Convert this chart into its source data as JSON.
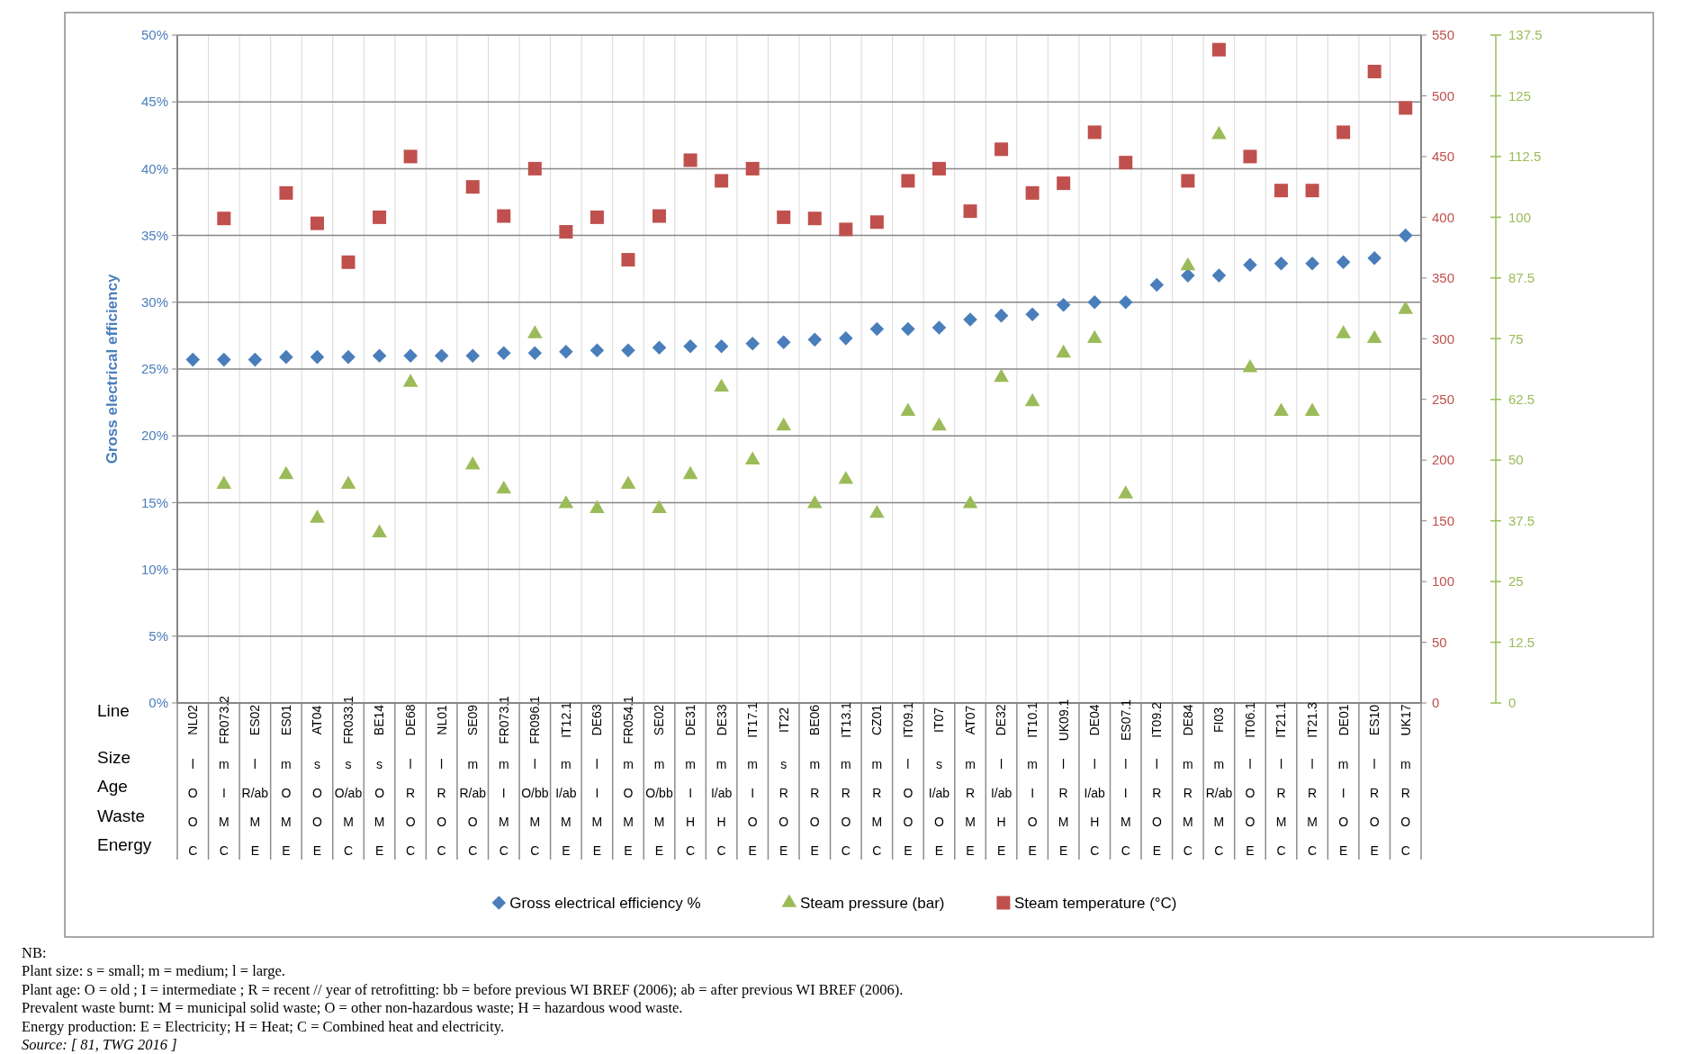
{
  "chart_data": {
    "type": "scatter",
    "ylabel": "Gross electrical efficiency",
    "xlabel": "Line\nSize\nAge\nWaste\nEnergy",
    "categories": [
      "NL02\nl\nO\nO\nC",
      "FR073.2\nm\nI\nM\nC",
      "ES02\nl\nR/ab\nM\nE",
      "ES01\nm\nO\nM\nE",
      "AT04\ns\nO\nO\nE",
      "FR033.1\ns\nO/ab\nM\nC",
      "BE14\ns\nO\nM\nE",
      "DE68\nl\nR\nO\nC",
      "NL01\nl\nR\nO\nC",
      "SE09\nm\nR/ab\nO\nC",
      "FR073.1\nm\nI\nM\nC",
      "FR096.1\nl\nO/bb\nM\nC",
      "IT12.1\nm\nI/ab\nM\nE",
      "DE63\nl\nI\nM\nE",
      "FR054.1\nm\nO\nM\nE",
      "SE02\nm\nO/bb\nM\nE",
      "DE31\nm\nI\nH\nC",
      "DE33\nm\nI/ab\nH\nC",
      "IT17.1\nm\nI\nO\nE",
      "IT22\ns\nR\nO\nE",
      "BE06\nm\nR\nO\nE",
      "IT13.1\nm\nR\nO\nC",
      "CZ01\nm\nR\nM\nC",
      "IT09.1\nl\nO\nO\nE",
      "IT07\ns\nI/ab\nO\nE",
      "AT07\nm\nR\nM\nE",
      "DE32\nl\nI/ab\nH\nE",
      "IT10.1\nm\nI\nO\nE",
      "UK09.1\nl\nR\nM\nE",
      "DE04\nl\nI/ab\nH\nC",
      "ES07.1\nl\nI\nM\nC",
      "IT09.2\nl\nR\nO\nE",
      "DE84\nm\nR\nM\nC",
      "FI03\nm\nR/ab\nM\nC",
      "IT06.1\nl\nO\nO\nE",
      "IT21.1\nl\nR\nM\nC",
      "IT21.3\nl\nR\nM\nC",
      "DE01\nm\nI\nO\nE",
      "ES10\nl\nR\nO\nE",
      "UK17\nm\nR\nO\nC"
    ],
    "series": [
      {
        "name": "Gross electrical efficiency %",
        "color": "#4a7ebb",
        "marker": "diamond",
        "values": [
          25.7,
          25.7,
          25.7,
          25.9,
          25.9,
          25.9,
          26.0,
          26.0,
          26.0,
          26.0,
          26.2,
          26.2,
          26.3,
          26.4,
          26.4,
          26.6,
          26.7,
          26.7,
          26.9,
          27.0,
          27.2,
          27.3,
          28.0,
          28.0,
          28.1,
          28.7,
          29.0,
          29.1,
          29.8,
          30.0,
          30.0,
          31.3,
          32.0,
          32.0,
          32.8,
          32.9,
          32.9,
          33.0,
          33.3,
          35.0
        ]
      },
      {
        "name": "Steam pressure (bar)",
        "color": "#9bbb59",
        "marker": "triangle",
        "axis": "y3",
        "values": [
          null,
          45,
          null,
          47,
          38,
          45,
          35,
          66,
          null,
          49,
          44,
          76,
          41,
          40,
          45,
          40,
          47,
          65,
          50,
          57,
          41,
          46,
          39,
          60,
          57,
          41,
          67,
          62,
          72,
          75,
          43,
          null,
          90,
          117,
          69,
          60,
          60,
          76,
          75,
          81
        ]
      },
      {
        "name": "Steam temperature (°C)",
        "color": "#c0504d",
        "marker": "square",
        "axis": "y2",
        "values": [
          null,
          399,
          null,
          420,
          395,
          363,
          400,
          450,
          null,
          425,
          401,
          440,
          388,
          400,
          365,
          401,
          447,
          430,
          440,
          400,
          399,
          390,
          396,
          430,
          440,
          405,
          456,
          420,
          428,
          470,
          445,
          null,
          430,
          538,
          450,
          422,
          422,
          470,
          520,
          490
        ]
      }
    ],
    "ylim": [
      0,
      50
    ],
    "yticks": [
      {
        "value": 0,
        "label": "0%"
      },
      {
        "value": 5,
        "label": "5%"
      },
      {
        "value": 10,
        "label": "10%"
      },
      {
        "value": 15,
        "label": "15%"
      },
      {
        "value": 20,
        "label": "20%"
      },
      {
        "value": 25,
        "label": "25%"
      },
      {
        "value": 30,
        "label": "30%"
      },
      {
        "value": 35,
        "label": "35%"
      },
      {
        "value": 40,
        "label": "40%"
      },
      {
        "value": 45,
        "label": "45%"
      },
      {
        "value": 50,
        "label": "50%"
      }
    ],
    "y2lim": [
      0,
      550
    ],
    "y2ticks": [
      0,
      50,
      100,
      150,
      200,
      250,
      300,
      350,
      400,
      450,
      500,
      550
    ],
    "y3lim": [
      0,
      137.5
    ],
    "y3ticks": [
      0,
      12.5,
      25,
      37.5,
      50,
      62.5,
      75,
      87.5,
      100,
      112.5,
      125,
      137.5
    ],
    "grid": true,
    "legend": "bottom",
    "annotations": [
      "NB:",
      "Plant size: s = small; m = medium; l = large.",
      "Plant age: O = old ; I = intermediate ; R = recent // year of retrofitting: bb = before previous WI BREF (2006); ab = after previous WI BREF (2006).",
      "Prevalent waste burnt: M = municipal solid waste; O = other non-hazardous waste; H = hazardous wood waste.",
      "Energy production: E = Electricity; H = Heat; C = Combined heat and electricity.",
      "Source: [ 81, TWG 2016 ]"
    ]
  }
}
